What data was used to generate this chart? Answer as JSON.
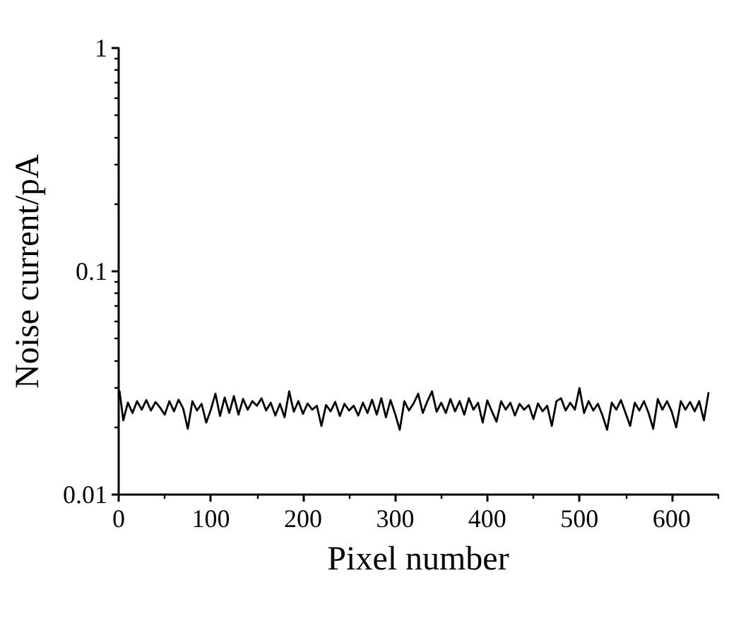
{
  "chart_data": {
    "type": "line",
    "xlabel": "Pixel number",
    "ylabel": "Noise current/pA",
    "xlim": [
      0,
      650
    ],
    "xticks": [
      0,
      {
        "value": 50,
        "label": null
      },
      100,
      {
        "value": 150,
        "label": null
      },
      200,
      {
        "value": 250,
        "label": null
      },
      300,
      {
        "value": 350,
        "label": null
      },
      400,
      {
        "value": 450,
        "label": null
      },
      500,
      {
        "value": 550,
        "label": null
      },
      600,
      {
        "value": 650,
        "label": null
      }
    ],
    "ylim": [
      0.01,
      1
    ],
    "yticks": [
      0.01,
      {
        "value": 0.02,
        "label": null
      },
      {
        "value": 0.03,
        "label": null
      },
      {
        "value": 0.04,
        "label": null
      },
      {
        "value": 0.05,
        "label": null
      },
      {
        "value": 0.06,
        "label": null
      },
      {
        "value": 0.07,
        "label": null
      },
      {
        "value": 0.08,
        "label": null
      },
      {
        "value": 0.09,
        "label": null
      },
      0.1,
      {
        "value": 0.2,
        "label": null
      },
      {
        "value": 0.3,
        "label": null
      },
      {
        "value": 0.4,
        "label": null
      },
      {
        "value": 0.5,
        "label": null
      },
      {
        "value": 0.6,
        "label": null
      },
      {
        "value": 0.7,
        "label": null
      },
      {
        "value": 0.8,
        "label": null
      },
      {
        "value": 0.9,
        "label": null
      },
      1
    ],
    "log": "y",
    "marker": "none",
    "line_style": "solid",
    "color": "#000000",
    "x": [
      1,
      5,
      10,
      15,
      20,
      25,
      30,
      35,
      40,
      45,
      50,
      55,
      60,
      65,
      70,
      75,
      80,
      85,
      90,
      95,
      100,
      105,
      110,
      115,
      120,
      125,
      130,
      135,
      140,
      145,
      150,
      155,
      160,
      165,
      170,
      175,
      180,
      185,
      190,
      195,
      200,
      205,
      210,
      215,
      220,
      225,
      230,
      235,
      240,
      245,
      250,
      255,
      260,
      265,
      270,
      275,
      280,
      285,
      290,
      295,
      300,
      305,
      310,
      315,
      320,
      325,
      330,
      335,
      340,
      345,
      350,
      355,
      360,
      365,
      370,
      375,
      380,
      385,
      390,
      395,
      400,
      405,
      410,
      415,
      420,
      425,
      430,
      435,
      440,
      445,
      450,
      455,
      460,
      465,
      470,
      475,
      480,
      485,
      490,
      495,
      500,
      505,
      510,
      515,
      520,
      525,
      530,
      535,
      540,
      545,
      550,
      555,
      560,
      565,
      570,
      575,
      580,
      585,
      590,
      595,
      600,
      605,
      610,
      615,
      620,
      625,
      630,
      635,
      640
    ],
    "values": [
      0.029,
      0.0215,
      0.0258,
      0.0232,
      0.0262,
      0.024,
      0.0265,
      0.0238,
      0.026,
      0.0245,
      0.0228,
      0.0262,
      0.0236,
      0.0266,
      0.0243,
      0.0197,
      0.0262,
      0.0238,
      0.0255,
      0.021,
      0.024,
      0.0283,
      0.0225,
      0.0272,
      0.0232,
      0.0276,
      0.0228,
      0.0268,
      0.024,
      0.0262,
      0.025,
      0.027,
      0.0238,
      0.0258,
      0.0226,
      0.0255,
      0.0222,
      0.029,
      0.0235,
      0.0262,
      0.023,
      0.0256,
      0.024,
      0.025,
      0.0203,
      0.0252,
      0.0236,
      0.026,
      0.0225,
      0.0255,
      0.0238,
      0.025,
      0.0226,
      0.0258,
      0.0232,
      0.0266,
      0.0228,
      0.027,
      0.0222,
      0.0265,
      0.023,
      0.0195,
      0.0262,
      0.0238,
      0.0256,
      0.0283,
      0.0232,
      0.0262,
      0.029,
      0.0235,
      0.0258,
      0.0232,
      0.0268,
      0.0236,
      0.0262,
      0.0228,
      0.027,
      0.024,
      0.0258,
      0.021,
      0.0264,
      0.0236,
      0.0212,
      0.0262,
      0.024,
      0.0258,
      0.0226,
      0.0255,
      0.024,
      0.0252,
      0.0218,
      0.0256,
      0.0236,
      0.025,
      0.0203,
      0.0262,
      0.027,
      0.0238,
      0.0258,
      0.024,
      0.03,
      0.0232,
      0.0262,
      0.0238,
      0.0255,
      0.0226,
      0.0195,
      0.0258,
      0.024,
      0.0265,
      0.0232,
      0.0203,
      0.0258,
      0.0238,
      0.0262,
      0.0232,
      0.0197,
      0.0268,
      0.024,
      0.0262,
      0.0236,
      0.02,
      0.0262,
      0.024,
      0.026,
      0.0236,
      0.0262,
      0.0215,
      0.0285
    ]
  }
}
